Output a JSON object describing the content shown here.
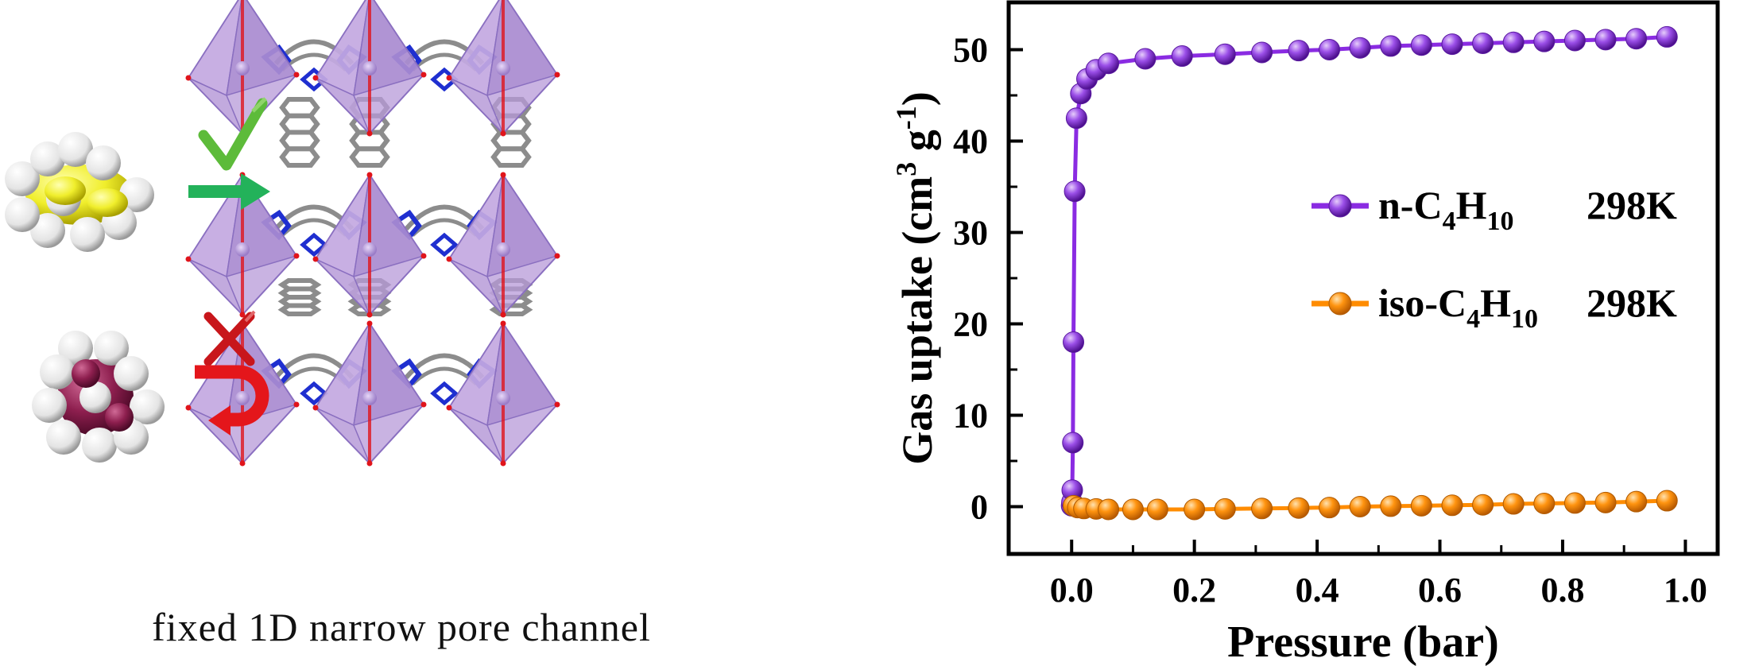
{
  "left_panel": {
    "caption": "fixed 1D narrow pore channel",
    "colors": {
      "polyhedron": "#b79ad8",
      "polyhedron_edge": "#8a6fc0",
      "linker": "#8c8c8c",
      "nitrogen": "#1f2fd0",
      "oxygen": "#e0141b",
      "n_butane": "#f0ee2c",
      "iso_butane": "#8e1f4f",
      "accept_arrow": "#23b25a",
      "reject_arrow": "#e4161b"
    }
  },
  "chart_data": {
    "type": "line",
    "xlabel": "Pressure (bar)",
    "ylabel_parts": {
      "main": "Gas uptake (cm",
      "sup1": "3",
      "mid": " g",
      "sup2": "-1",
      "end": ")"
    },
    "xlim": [
      -0.1,
      1.05
    ],
    "ylim": [
      -5,
      55
    ],
    "xticks": [
      0.0,
      0.2,
      0.4,
      0.6,
      0.8,
      1.0
    ],
    "xtick_labels": [
      "0.0",
      "0.2",
      "0.4",
      "0.6",
      "0.8",
      "1.0"
    ],
    "yticks": [
      0,
      10,
      20,
      30,
      40,
      50
    ],
    "ytick_labels": [
      "0",
      "10",
      "20",
      "30",
      "40",
      "50"
    ],
    "grid": false,
    "legend_placement": "middle-right",
    "series": [
      {
        "name_parts": {
          "prefix": "n-C",
          "sub1": "4",
          "mid": "H",
          "sub2": "10"
        },
        "temperature": "298K",
        "color": "#8a2be2",
        "x": [
          0.0,
          0.0005,
          0.001,
          0.002,
          0.003,
          0.005,
          0.008,
          0.015,
          0.025,
          0.04,
          0.06,
          0.12,
          0.18,
          0.25,
          0.31,
          0.37,
          0.42,
          0.47,
          0.52,
          0.57,
          0.62,
          0.67,
          0.72,
          0.77,
          0.82,
          0.87,
          0.92,
          0.97
        ],
        "y": [
          0.1,
          0.5,
          1.8,
          7.0,
          18.0,
          34.5,
          42.5,
          45.2,
          46.8,
          47.8,
          48.5,
          49.0,
          49.3,
          49.5,
          49.7,
          49.9,
          50.0,
          50.2,
          50.4,
          50.5,
          50.6,
          50.7,
          50.8,
          50.9,
          51.0,
          51.1,
          51.2,
          51.4
        ]
      },
      {
        "name_parts": {
          "prefix": "iso-C",
          "sub1": "4",
          "mid": "H",
          "sub2": "10"
        },
        "temperature": "298K",
        "color": "#ff8c00",
        "x": [
          0.003,
          0.01,
          0.02,
          0.04,
          0.06,
          0.1,
          0.14,
          0.2,
          0.25,
          0.31,
          0.37,
          0.42,
          0.47,
          0.52,
          0.57,
          0.62,
          0.67,
          0.72,
          0.77,
          0.82,
          0.87,
          0.92,
          0.97
        ],
        "y": [
          0.1,
          -0.1,
          -0.2,
          -0.25,
          -0.3,
          -0.3,
          -0.3,
          -0.3,
          -0.25,
          -0.2,
          -0.15,
          -0.1,
          0.0,
          0.05,
          0.1,
          0.15,
          0.2,
          0.3,
          0.35,
          0.4,
          0.45,
          0.55,
          0.65
        ]
      }
    ]
  }
}
